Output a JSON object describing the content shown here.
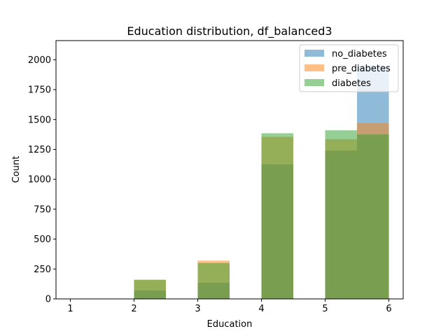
{
  "chart_data": {
    "type": "bar",
    "title": "Education distribution, df_balanced3",
    "xlabel": "Education",
    "ylabel": "Count",
    "xlim": [
      0.775,
      6.225
    ],
    "ylim": [
      0,
      2160
    ],
    "xticks": [
      1,
      2,
      3,
      4,
      5,
      6
    ],
    "yticks": [
      0,
      250,
      500,
      750,
      1000,
      1250,
      1500,
      1750,
      2000
    ],
    "bin_edges": [
      1.0,
      1.5,
      2.0,
      2.5,
      3.0,
      3.5,
      4.0,
      4.5,
      5.0,
      5.5,
      6.0
    ],
    "alpha": 0.5,
    "legend_position": "top-right",
    "grid": false,
    "series": [
      {
        "name": "no_diabetes",
        "color": "#1f77b4",
        "values": [
          0,
          0,
          70,
          0,
          135,
          0,
          1125,
          0,
          1240,
          1950
        ]
      },
      {
        "name": "pre_diabetes",
        "color": "#ff7f0e",
        "values": [
          0,
          0,
          160,
          0,
          320,
          0,
          1355,
          0,
          1335,
          1470
        ]
      },
      {
        "name": "diabetes",
        "color": "#2ca02c",
        "values": [
          0,
          0,
          160,
          0,
          300,
          0,
          1385,
          0,
          1410,
          1375
        ]
      }
    ]
  }
}
